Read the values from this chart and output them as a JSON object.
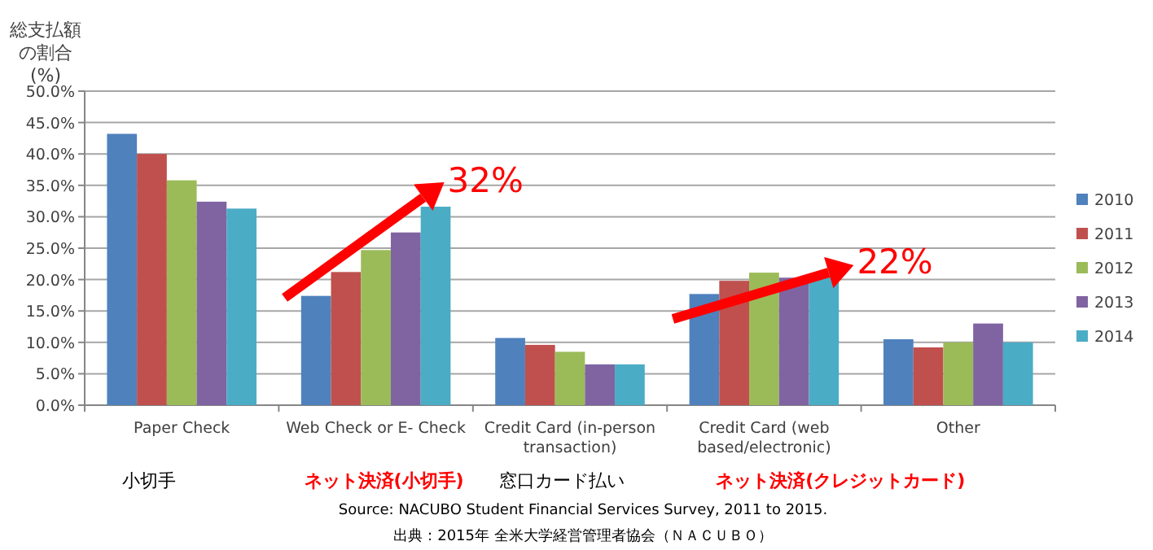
{
  "chart_data": {
    "type": "bar",
    "ylabel": "総支払額の割合(%)",
    "categories": [
      "Paper Check",
      "Web Check or E- Check",
      "Credit Card (in-person transaction)",
      "Credit Card (web based/electronic)",
      "Other"
    ],
    "series": [
      {
        "name": "2010",
        "color": "#4f81bd",
        "values": [
          43.2,
          17.4,
          10.7,
          17.7,
          10.5
        ]
      },
      {
        "name": "2011",
        "color": "#c0504d",
        "values": [
          40.0,
          21.2,
          9.6,
          19.8,
          9.2
        ]
      },
      {
        "name": "2012",
        "color": "#9bbb59",
        "values": [
          35.8,
          24.7,
          8.5,
          21.1,
          10.0
        ]
      },
      {
        "name": "2013",
        "color": "#8064a2",
        "values": [
          32.4,
          27.5,
          6.5,
          20.3,
          13.0
        ]
      },
      {
        "name": "2014",
        "color": "#4bacc6",
        "values": [
          31.3,
          31.6,
          6.5,
          20.5,
          10.0
        ]
      }
    ],
    "ylim": [
      0,
      50
    ],
    "yticks": [
      {
        "value": 0,
        "label": "0.0%"
      },
      {
        "value": 5,
        "label": "5.0%"
      },
      {
        "value": 10,
        "label": "10.0%"
      },
      {
        "value": 15,
        "label": "15.0%"
      },
      {
        "value": 20,
        "label": "20.0%"
      },
      {
        "value": 25,
        "label": "25.0%"
      },
      {
        "value": 30,
        "label": "30.0%"
      },
      {
        "value": 35,
        "label": "35.0%"
      },
      {
        "value": 40,
        "label": "40.0%"
      },
      {
        "value": 45,
        "label": "45.0%"
      },
      {
        "value": 50,
        "label": "50.0%"
      }
    ],
    "grid": "y",
    "legend": "right",
    "annotations": [
      "32%",
      "22%",
      "小切手",
      "ネット決済(小切手)",
      "窓口カード払い",
      "ネット決済(クレジットカード)",
      "Source: NACUBO Student Financial Services Survey, 2011 to 2015.",
      "出典：2015年 全米大学経営管理者協会（ＮＡＣＵＢＯ）"
    ]
  }
}
